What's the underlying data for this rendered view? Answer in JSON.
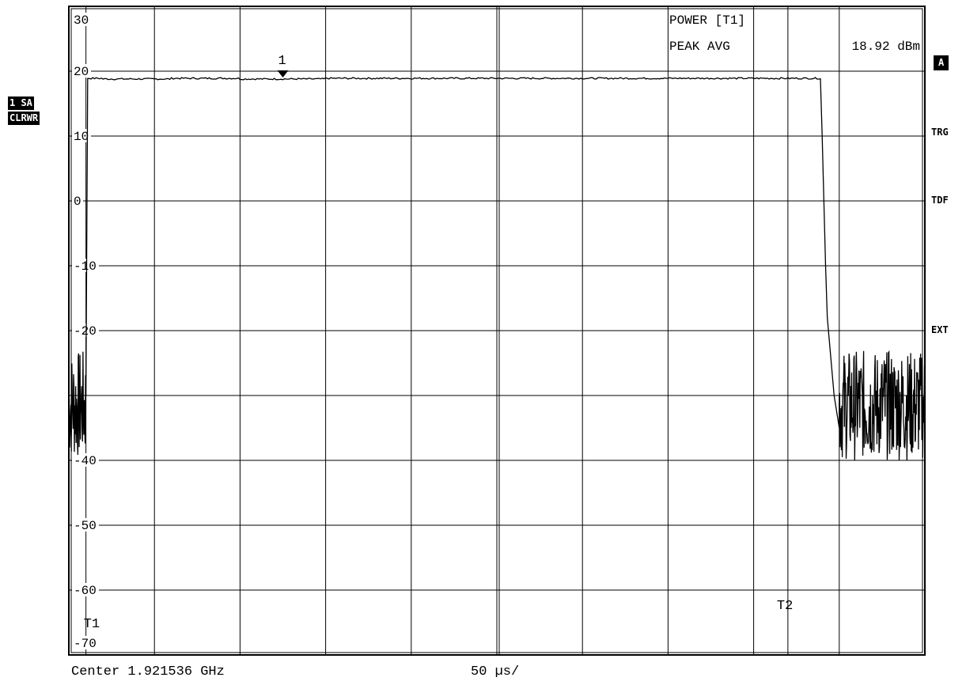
{
  "left_labels": {
    "trace": "1 SA",
    "mode": "CLRWR"
  },
  "right_labels": {
    "a": "A",
    "trg": "TRG",
    "tdf": "TDF",
    "ext": "EXT"
  },
  "readout": {
    "title": "POWER [T1]",
    "label": "PEAK AVG",
    "value": "18.92 dBm"
  },
  "footer": {
    "center": "Center 1.921536 GHz",
    "sweep": "50 µs/"
  },
  "marker": {
    "label": "1"
  },
  "chart_data": {
    "type": "line",
    "title": "",
    "xlabel": "",
    "ylabel": "",
    "x_unit": "µs",
    "xlim": [
      0,
      500
    ],
    "ylim": [
      -70,
      30
    ],
    "y_ticks": [
      "30",
      "20",
      "10",
      "0",
      "-10",
      "-20",
      "-40",
      "-50",
      "-60",
      "-70"
    ],
    "grid": true,
    "time_lines": [
      {
        "label": "T1",
        "x": 10
      },
      {
        "label": "T2",
        "x": 420
      }
    ],
    "series": [
      {
        "x": [
          0,
          9,
          10,
          11,
          20,
          60,
          100,
          150,
          200,
          250,
          300,
          350,
          400,
          437,
          440,
          442,
          443,
          447,
          450,
          500
        ],
        "y": [
          -36,
          -37,
          -30,
          18.9,
          18.8,
          18.9,
          18.8,
          18.9,
          18.9,
          18.9,
          18.9,
          18.9,
          18.9,
          18.9,
          10,
          -10,
          -18,
          -30,
          -35,
          -36
        ],
        "noise_floor_band": [
          -40,
          -23
        ]
      }
    ],
    "markers": [
      {
        "label": "1",
        "x": 125,
        "y": 18.9
      }
    ]
  }
}
